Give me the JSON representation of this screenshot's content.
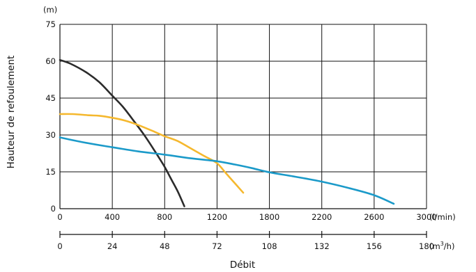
{
  "chart_data": {
    "type": "line",
    "ylabel": "Hauteur de refoulement",
    "xlabel": "Débit",
    "y_unit": "(m)",
    "x_unit": "(l/min)",
    "x2_unit_base": "(m",
    "x2_unit_sup": "3",
    "x2_unit_tail": "/h)",
    "xlim": [
      0,
      3000
    ],
    "ylim": [
      0,
      75
    ],
    "grid": true,
    "x_ticks": [
      0,
      400,
      800,
      1200,
      1800,
      2200,
      2600,
      3000
    ],
    "y_ticks": [
      0,
      15,
      30,
      45,
      60,
      75
    ],
    "x2_ticks": [
      0,
      24,
      48,
      72,
      108,
      132,
      156,
      180
    ],
    "colors": {
      "grid": "#111111",
      "axis": "#111111"
    },
    "series": [
      {
        "color": "#2b2b2b",
        "points": [
          [
            0,
            60.5
          ],
          [
            80,
            59
          ],
          [
            200,
            55.5
          ],
          [
            300,
            51.5
          ],
          [
            400,
            46
          ],
          [
            480,
            41.5
          ],
          [
            560,
            36
          ],
          [
            650,
            29.5
          ],
          [
            730,
            23
          ],
          [
            800,
            17
          ],
          [
            850,
            12
          ],
          [
            900,
            7
          ],
          [
            950,
            1
          ]
        ]
      },
      {
        "color": "#f5b82e",
        "points": [
          [
            0,
            38.5
          ],
          [
            100,
            38.5
          ],
          [
            220,
            38
          ],
          [
            300,
            37.8
          ],
          [
            400,
            37
          ],
          [
            500,
            35.8
          ],
          [
            600,
            34
          ],
          [
            700,
            31.8
          ],
          [
            800,
            29.5
          ],
          [
            900,
            27.5
          ],
          [
            1000,
            24.5
          ],
          [
            1100,
            21.5
          ],
          [
            1200,
            18.5
          ],
          [
            1300,
            14.5
          ],
          [
            1400,
            10.5
          ],
          [
            1500,
            6.5
          ]
        ]
      },
      {
        "color": "#1b9ac9",
        "points": [
          [
            0,
            29
          ],
          [
            180,
            27
          ],
          [
            400,
            25
          ],
          [
            600,
            23.3
          ],
          [
            800,
            22
          ],
          [
            1000,
            20.5
          ],
          [
            1200,
            19.3
          ],
          [
            1400,
            18
          ],
          [
            1600,
            16.5
          ],
          [
            1800,
            14.8
          ],
          [
            2000,
            13
          ],
          [
            2200,
            11
          ],
          [
            2400,
            8.5
          ],
          [
            2600,
            5.5
          ],
          [
            2750,
            2
          ]
        ]
      }
    ]
  }
}
